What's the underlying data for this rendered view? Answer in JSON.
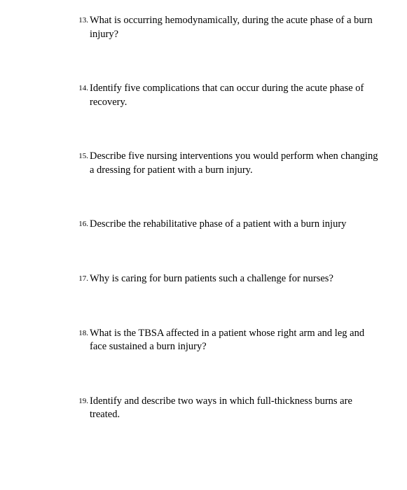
{
  "questions": [
    {
      "number": "13.",
      "text": "What is occurring hemodynamically, during the acute phase of a burn injury?"
    },
    {
      "number": "14.",
      "text": "Identify five complications that can occur during the acute phase of recovery."
    },
    {
      "number": "15.",
      "text": "Describe five nursing interventions you would perform when changing a dressing for patient with a burn injury."
    },
    {
      "number": "16.",
      "text": "Describe the rehabilitative phase of a patient with a burn injury"
    },
    {
      "number": "17.",
      "text": "Why is caring for burn patients such a challenge for nurses?"
    },
    {
      "number": "18.",
      "text": "What is the TBSA affected in a patient whose right arm and leg and face sustained a burn injury?"
    },
    {
      "number": "19.",
      "text": "Identify and describe two ways in which full-thickness burns are treated."
    }
  ]
}
